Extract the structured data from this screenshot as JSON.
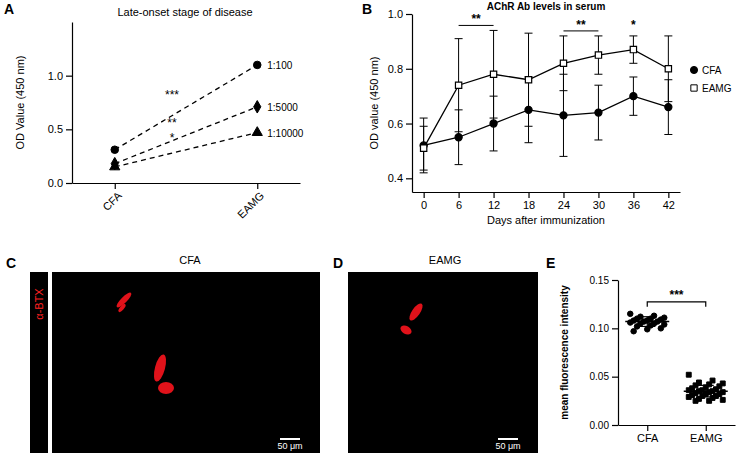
{
  "chart_data": [
    {
      "type": "line",
      "panel": "A",
      "title": "Late-onset stage of disease",
      "y_label": "OD Value (450 nm)",
      "categories": [
        "CFA",
        "EAMG"
      ],
      "ylim": [
        0,
        1.5
      ],
      "yticks": [
        {
          "value": 0,
          "label": "0.0"
        },
        0.5,
        {
          "value": 1,
          "label": "1.0"
        }
      ],
      "series": [
        {
          "name": "1:100",
          "color": "#000000",
          "values": [
            0.31,
            1.1
          ],
          "marker": "circle",
          "line_style": "dashed",
          "annotation": "***"
        },
        {
          "name": "1:5000",
          "color": "#000000",
          "values": [
            0.18,
            0.71
          ],
          "marker": "diamond",
          "line_style": "dashed",
          "annotation": "**"
        },
        {
          "name": "1:10000",
          "color": "#000000",
          "values": [
            0.15,
            0.47
          ],
          "marker": "triangle",
          "line_style": "dashed",
          "annotation": "*"
        }
      ]
    },
    {
      "type": "line",
      "panel": "B",
      "title": "AChR Ab levels in serum",
      "x_label": "Days after immunization",
      "y_label": "OD value (450 nm)",
      "x": [
        0,
        6,
        12,
        18,
        24,
        30,
        36,
        42
      ],
      "xlim": [
        -2,
        44
      ],
      "xticks": [
        0,
        6,
        12,
        18,
        24,
        30,
        36,
        42
      ],
      "ylim": [
        0.35,
        1.0
      ],
      "yticks": [
        0.4,
        0.6,
        0.8,
        {
          "value": 1,
          "label": "1.0"
        }
      ],
      "legend": "right",
      "series": [
        {
          "name": "CFA",
          "color": "#000000",
          "marker": "circle",
          "values": [
            0.52,
            0.55,
            0.6,
            0.65,
            0.63,
            0.64,
            0.7,
            0.66
          ],
          "errors": [
            0.1,
            0.1,
            0.1,
            0.12,
            0.15,
            0.1,
            0.07,
            0.1
          ]
        },
        {
          "name": "EAMG",
          "color": "#000000",
          "marker": "open-square",
          "values": [
            0.51,
            0.74,
            0.78,
            0.76,
            0.82,
            0.85,
            0.87,
            0.8
          ],
          "errors": [
            0.08,
            0.17,
            0.16,
            0.17,
            0.1,
            0.07,
            0.05,
            0.12
          ]
        }
      ],
      "annotations": [
        {
          "text": "**",
          "x": [
            6,
            12
          ]
        },
        {
          "text": "**",
          "x": [
            24,
            30
          ]
        },
        {
          "text": "*",
          "x": [
            36,
            36
          ]
        }
      ]
    },
    {
      "type": "image",
      "panel": "C",
      "title": "CFA",
      "label": "α-BTX",
      "scale_bar": "50 μm"
    },
    {
      "type": "image",
      "panel": "D",
      "title": "EAMG",
      "scale_bar": "50 μm"
    },
    {
      "type": "scatter",
      "panel": "E",
      "y_label": "mean fluorescence intensity",
      "categories": [
        "CFA",
        "EAMG"
      ],
      "ylim": [
        0,
        0.15
      ],
      "yticks": [
        {
          "value": 0,
          "label": "0.00"
        },
        {
          "value": 0.05,
          "label": "0.05"
        },
        {
          "value": 0.1,
          "label": "0.10"
        },
        {
          "value": 0.15,
          "label": "0.15"
        }
      ],
      "groups": [
        {
          "color": "#000000",
          "marker": "circle",
          "mean": 0.107,
          "sd": 0.005,
          "values": [
            0.115,
            0.113,
            0.112,
            0.111,
            0.11,
            0.11,
            0.109,
            0.108,
            0.108,
            0.107,
            0.107,
            0.106,
            0.105,
            0.105,
            0.104,
            0.103,
            0.102,
            0.1,
            0.099,
            0.097
          ]
        },
        {
          "color": "#000000",
          "marker": "square",
          "mean": 0.035,
          "sd": 0.006,
          "values": [
            0.052,
            0.046,
            0.044,
            0.043,
            0.042,
            0.041,
            0.04,
            0.039,
            0.038,
            0.037,
            0.036,
            0.036,
            0.035,
            0.035,
            0.034,
            0.034,
            0.033,
            0.032,
            0.032,
            0.031,
            0.03,
            0.03,
            0.029,
            0.028,
            0.027,
            0.026,
            0.025,
            0.025
          ]
        }
      ],
      "annotation": "***"
    }
  ]
}
